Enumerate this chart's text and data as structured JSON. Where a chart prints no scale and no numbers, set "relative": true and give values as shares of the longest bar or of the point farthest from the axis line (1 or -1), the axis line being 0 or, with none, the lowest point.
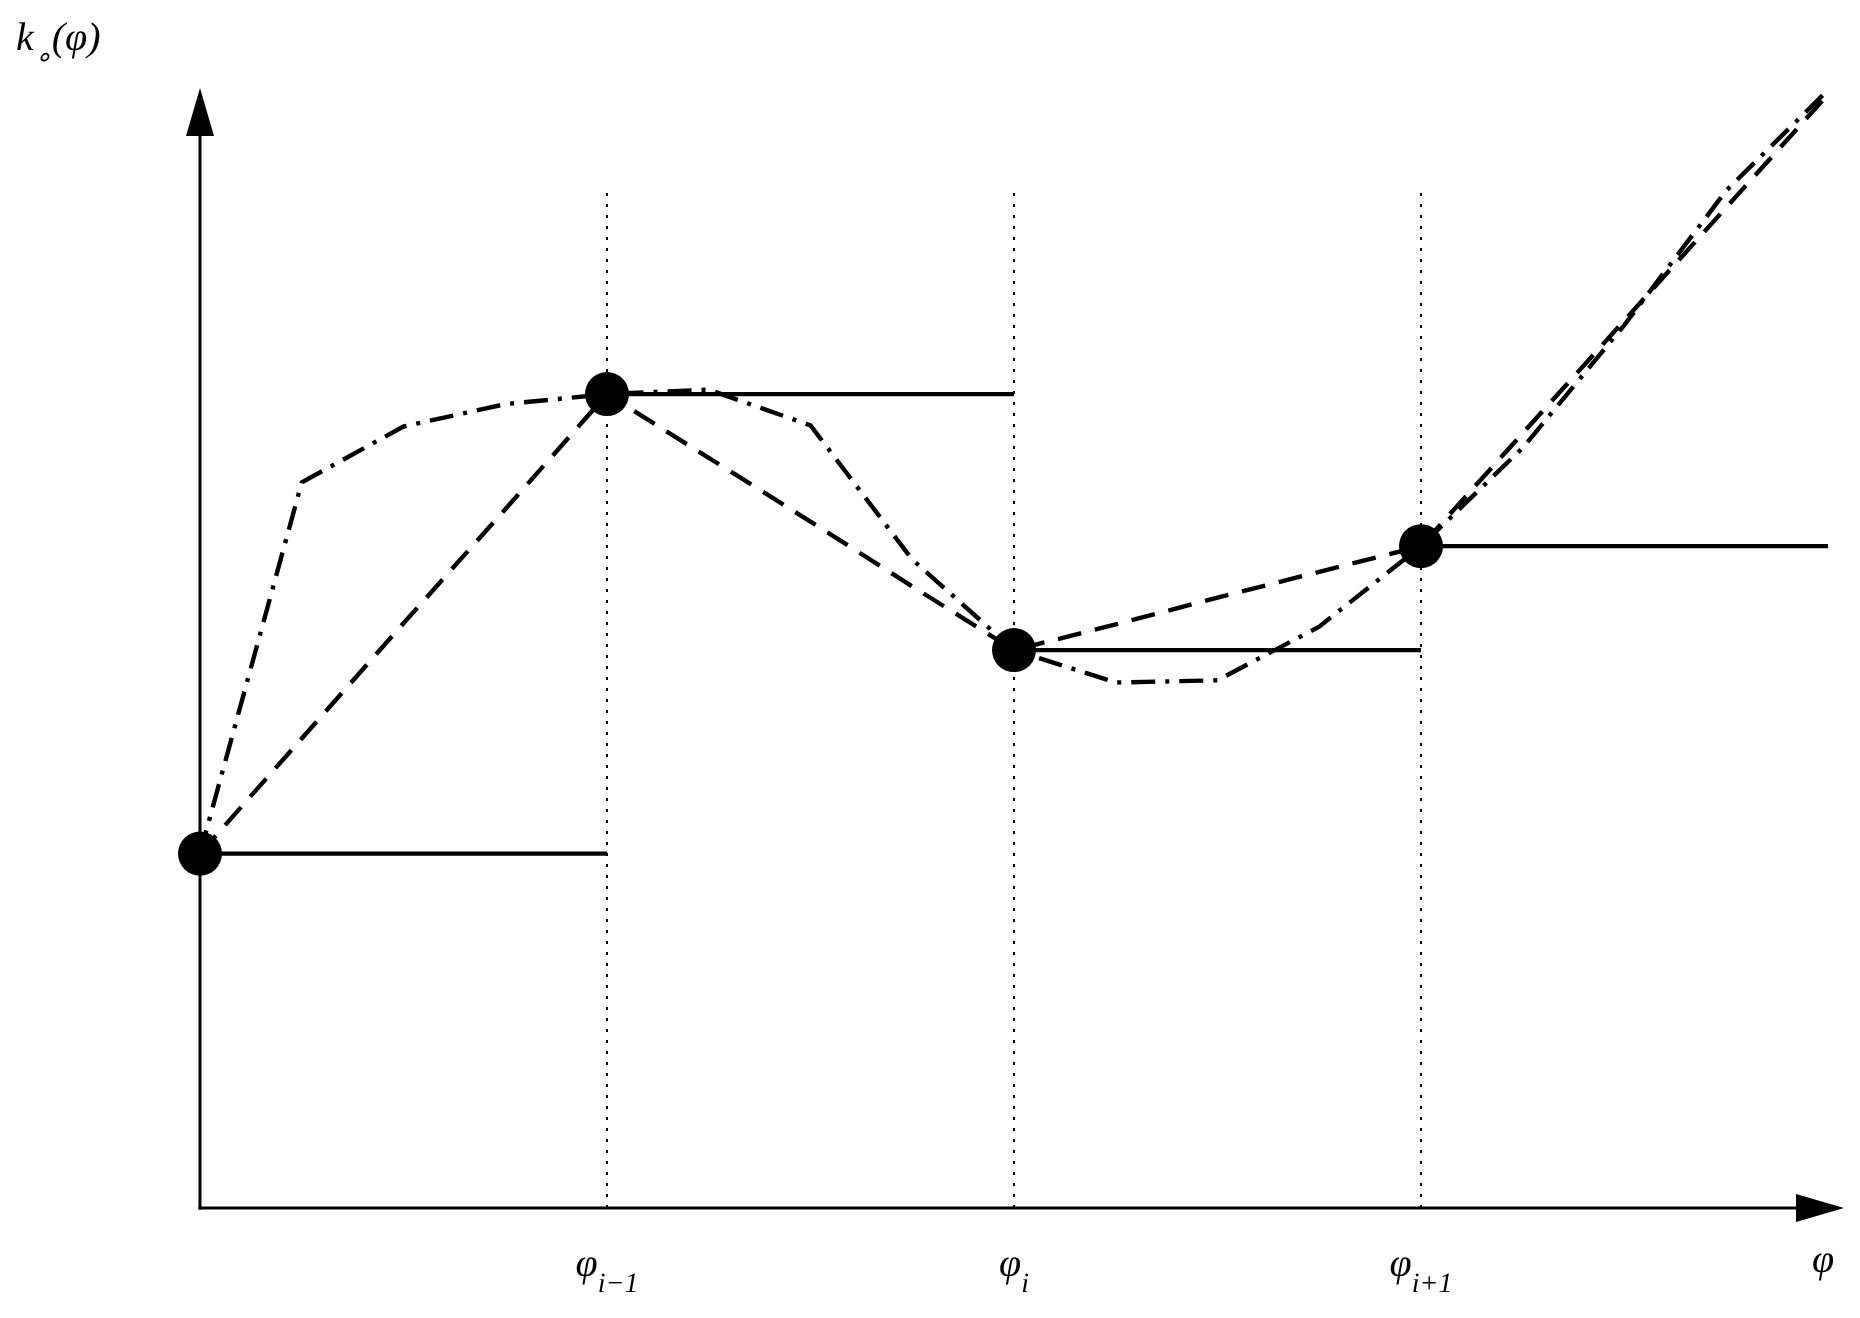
{
  "chart_data": {
    "type": "line",
    "relative": true,
    "xlabel": "φ",
    "ylabel": "k$_{∘}$(φ)",
    "categories": [
      null,
      null,
      null,
      null,
      "φ$_{i−1}$",
      null,
      null,
      null,
      "φ$_{i}$",
      null,
      null,
      null,
      "φ$_{i+1}$",
      null,
      null,
      null,
      null
    ],
    "tick_labels": "x",
    "grid": false,
    "ref_lines": [
      {
        "axis": "x",
        "value": "φ$_{i−1}$",
        "line_style": "dotted",
        "color": "#000000"
      },
      {
        "axis": "x",
        "value": "φ$_{i}$",
        "line_style": "dotted",
        "color": "#000000"
      },
      {
        "axis": "x",
        "value": "φ$_{i+1}$",
        "line_style": "dotted",
        "color": "#000000"
      }
    ],
    "series": [
      {
        "color": "#000000",
        "line_style": "solid",
        "values": [
          0.317,
          0.317,
          0.317,
          0.317,
          0.317,
          null,
          null,
          null,
          null,
          null,
          null,
          null,
          null,
          null,
          null,
          null,
          null
        ]
      },
      {
        "color": "#000000",
        "line_style": "solid",
        "values": [
          null,
          null,
          null,
          null,
          0.728,
          0.728,
          0.728,
          0.728,
          0.728,
          null,
          null,
          null,
          null,
          null,
          null,
          null,
          null
        ]
      },
      {
        "color": "#000000",
        "line_style": "solid",
        "values": [
          null,
          null,
          null,
          null,
          null,
          null,
          null,
          null,
          0.499,
          0.499,
          0.499,
          0.499,
          0.499,
          null,
          null,
          null,
          null
        ]
      },
      {
        "color": "#000000",
        "line_style": "solid",
        "values": [
          null,
          null,
          null,
          null,
          null,
          null,
          null,
          null,
          null,
          null,
          null,
          null,
          0.592,
          0.592,
          0.592,
          0.592,
          0.592
        ]
      },
      {
        "color": "#000000",
        "line_style": "dashed",
        "values": [
          0.317,
          0.42,
          0.523,
          0.625,
          0.728,
          0.671,
          0.614,
          0.556,
          0.499,
          0.522,
          0.546,
          0.569,
          0.592,
          0.693,
          0.794,
          0.895,
          0.996
        ]
      },
      {
        "color": "#000000",
        "line_style": "dashdot",
        "values": [
          0.317,
          0.649,
          0.699,
          0.719,
          0.728,
          0.732,
          0.7,
          0.58,
          0.499,
          0.47,
          0.472,
          0.52,
          0.592,
          0.68,
          0.79,
          0.91,
          1.0
        ]
      },
      {
        "type": "scatter",
        "color": "#000000",
        "marker": "circle",
        "values": [
          0.317,
          null,
          null,
          null,
          0.728,
          null,
          null,
          null,
          0.499,
          null,
          null,
          null,
          0.592,
          null,
          null,
          null,
          null
        ]
      }
    ]
  }
}
